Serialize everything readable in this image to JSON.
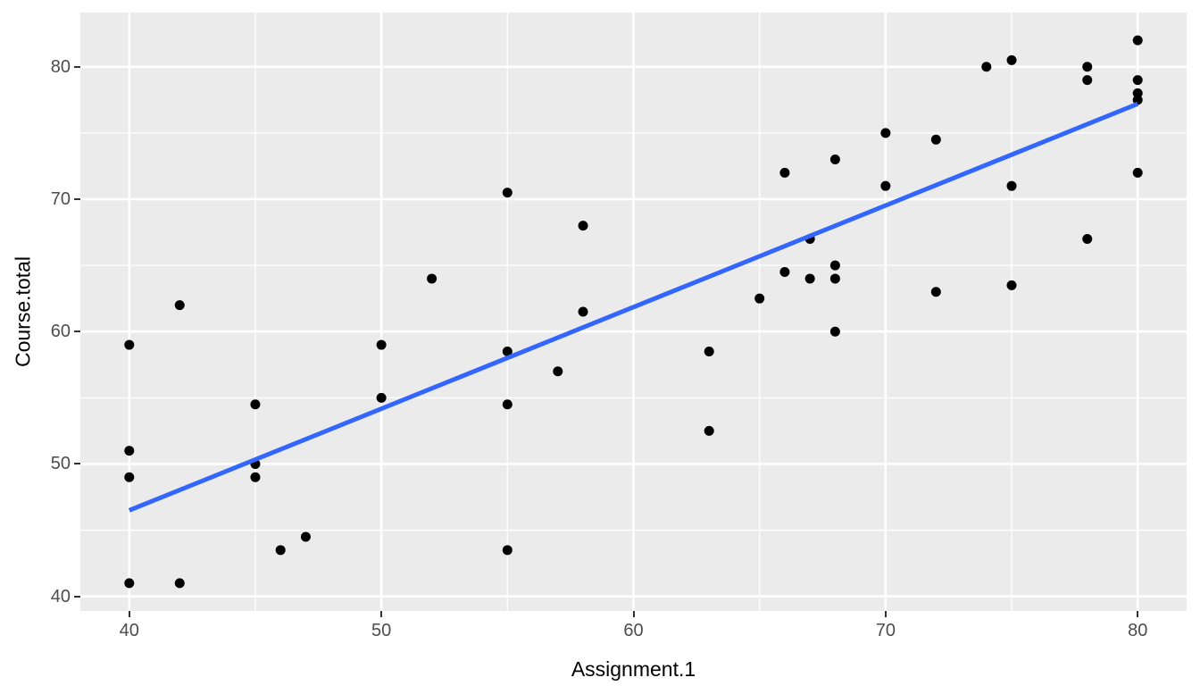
{
  "figure": {
    "bg_color": "#FFFFFF",
    "panel_bg": "#EBEBEB",
    "grid_color": "#FFFFFF",
    "tick_mark_color": "#333333",
    "tick_label_color": "#4D4D4D",
    "axis_title_color": "#000000"
  },
  "chart_data": {
    "type": "scatter",
    "title": "",
    "xlabel": "Assignment.1",
    "ylabel": "Course.total",
    "xlim": [
      38.06,
      81.94
    ],
    "ylim": [
      38.9,
      84.1
    ],
    "x_ticks": [
      40,
      50,
      60,
      70,
      80
    ],
    "y_ticks": [
      40,
      50,
      60,
      70,
      80
    ],
    "x_minor_ticks": [
      45,
      55,
      65,
      75
    ],
    "y_minor_ticks": [
      45,
      55,
      65,
      75
    ],
    "grid": true,
    "legend": "none",
    "point_color": "#000000",
    "point_radius": 5.5,
    "points": [
      [
        40,
        59
      ],
      [
        40,
        51
      ],
      [
        40,
        49
      ],
      [
        40,
        41
      ],
      [
        42,
        62
      ],
      [
        42,
        41
      ],
      [
        45,
        54.5
      ],
      [
        45,
        50
      ],
      [
        45,
        49
      ],
      [
        46,
        43.5
      ],
      [
        47,
        44.5
      ],
      [
        50,
        59
      ],
      [
        50,
        55
      ],
      [
        52,
        64
      ],
      [
        55,
        70.5
      ],
      [
        55,
        58.5
      ],
      [
        55,
        54.5
      ],
      [
        55,
        43.5
      ],
      [
        57,
        57
      ],
      [
        58,
        68
      ],
      [
        58,
        61.5
      ],
      [
        63,
        58.5
      ],
      [
        63,
        52.5
      ],
      [
        65,
        62.5
      ],
      [
        66,
        72
      ],
      [
        66,
        64.5
      ],
      [
        67,
        67
      ],
      [
        67,
        64
      ],
      [
        68,
        73
      ],
      [
        68,
        65
      ],
      [
        68,
        64
      ],
      [
        68,
        60
      ],
      [
        70,
        75
      ],
      [
        70,
        71
      ],
      [
        72,
        74.5
      ],
      [
        72,
        63
      ],
      [
        74,
        80
      ],
      [
        75,
        80.5
      ],
      [
        75,
        71
      ],
      [
        75,
        63.5
      ],
      [
        78,
        80
      ],
      [
        78,
        79
      ],
      [
        78,
        67
      ],
      [
        80,
        82
      ],
      [
        80,
        79
      ],
      [
        80,
        78
      ],
      [
        80,
        77.5
      ],
      [
        80,
        72
      ]
    ],
    "regression_line": {
      "color": "#3366FF",
      "stroke_width": 5,
      "x1": 40,
      "y1": 46.5,
      "x2": 80,
      "y2": 77.2
    }
  }
}
